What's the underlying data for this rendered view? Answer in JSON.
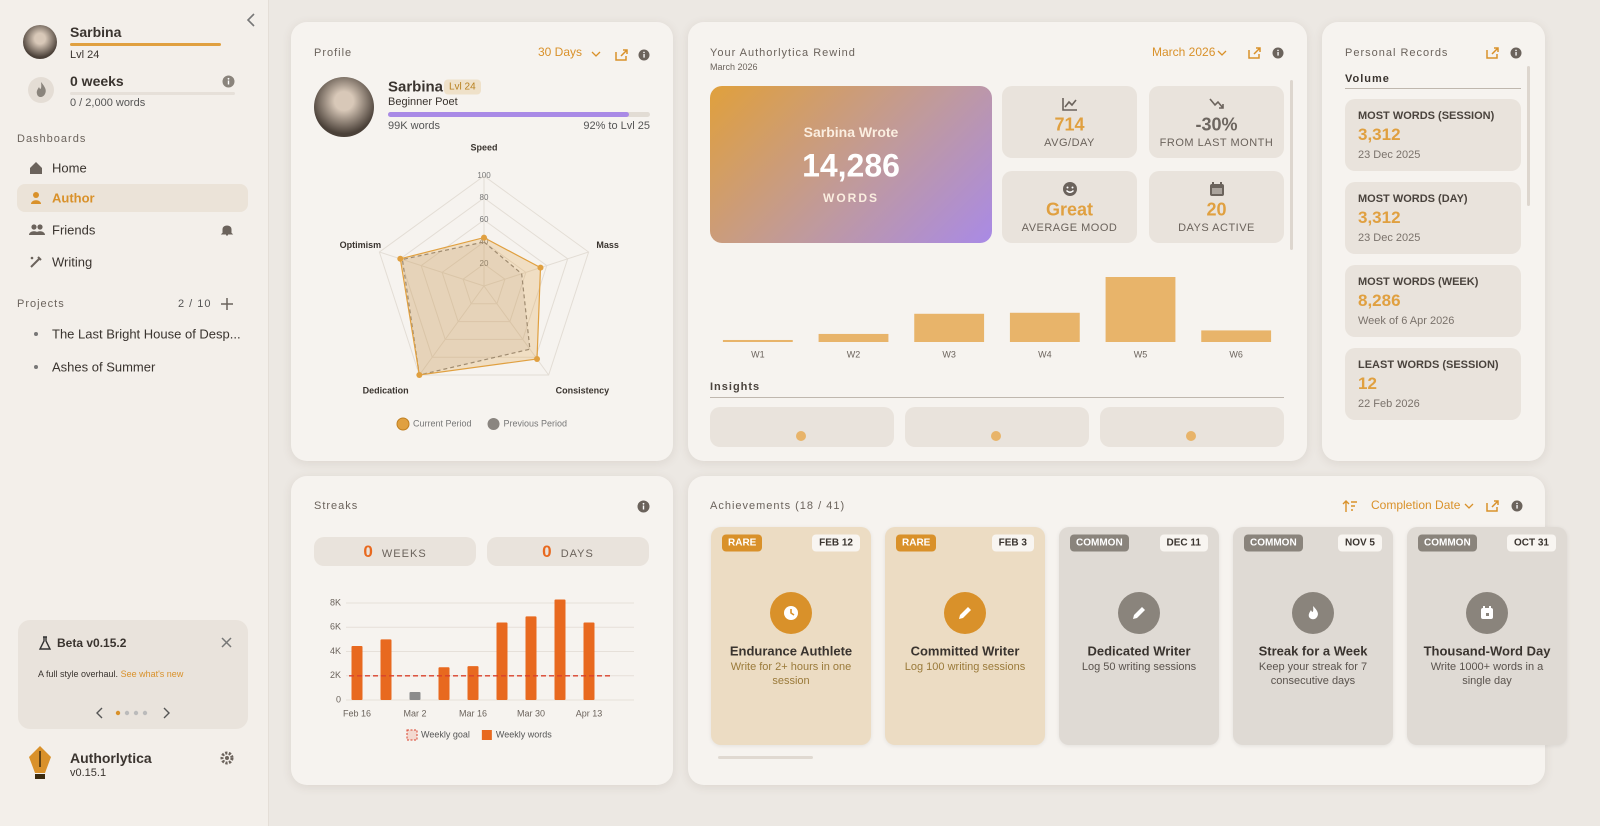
{
  "sidebar": {
    "user": {
      "name": "Sarbina",
      "level": "Lvl 24"
    },
    "streak": {
      "title": "0 weeks",
      "progress": "0 / 2,000 words"
    },
    "dashboards_label": "Dashboards",
    "nav": [
      "Home",
      "Author",
      "Friends",
      "Writing"
    ],
    "projects": {
      "label": "Projects",
      "count": "2 / 10",
      "items": [
        "The Last Bright House of Desp...",
        "Ashes of Summer"
      ]
    },
    "beta": {
      "title": "Beta v0.15.2",
      "text": "A full style overhaul.",
      "link": "See what's new"
    },
    "app": {
      "name": "Authorlytica",
      "version": "v0.15.1"
    }
  },
  "profile": {
    "title": "Profile",
    "period": "30 Days",
    "name": "Sarbina",
    "level": "Lvl 24",
    "role": "Beginner Poet",
    "words": "99K words",
    "progress": {
      "value": 92,
      "label": "92% to Lvl 25"
    }
  },
  "rewind": {
    "title": "Your Authorlytica Rewind",
    "subtitle": "March 2026",
    "period": "March 2026",
    "hero": {
      "intro": "Sarbina Wrote",
      "value": "14,286",
      "unit": "WORDS"
    },
    "stats": [
      {
        "value": "714",
        "label": "AVG/DAY",
        "color": "#e0a040"
      },
      {
        "value": "-30%",
        "label": "FROM LAST MONTH",
        "color": "#6d6660"
      },
      {
        "value": "Great",
        "label": "AVERAGE MOOD",
        "color": "#e0a040"
      },
      {
        "value": "20",
        "label": "DAYS ACTIVE",
        "color": "#e0a040"
      }
    ],
    "insights_label": "Insights"
  },
  "records": {
    "title": "Personal Records",
    "section": "Volume",
    "items": [
      {
        "label": "MOST WORDS (SESSION)",
        "value": "3,312",
        "date": "23 Dec 2025"
      },
      {
        "label": "MOST WORDS (DAY)",
        "value": "3,312",
        "date": "23 Dec 2025"
      },
      {
        "label": "MOST WORDS (WEEK)",
        "value": "8,286",
        "date": "Week of 6 Apr 2026"
      },
      {
        "label": "LEAST WORDS (SESSION)",
        "value": "12",
        "date": "22 Feb 2026"
      }
    ]
  },
  "streaks": {
    "title": "Streaks",
    "weeks": {
      "value": "0",
      "label": "WEEKS"
    },
    "days": {
      "value": "0",
      "label": "DAYS"
    }
  },
  "achievements": {
    "title": "Achievements (18 / 41)",
    "sort": "Completion Date",
    "items": [
      {
        "rarity": "RARE",
        "date": "FEB 12",
        "title": "Endurance Authlete",
        "description": "Write for 2+ hours in one session",
        "color": "#ecdcc3",
        "accent": "#d9912a"
      },
      {
        "rarity": "RARE",
        "date": "FEB 3",
        "title": "Committed Writer",
        "description": "Log 100 writing sessions",
        "color": "#ecdcc3",
        "accent": "#d9912a"
      },
      {
        "rarity": "COMMON",
        "date": "DEC 11",
        "title": "Dedicated Writer",
        "description": "Log 50 writing sessions",
        "color": "#dfdad4",
        "accent": "#8a847c"
      },
      {
        "rarity": "COMMON",
        "date": "NOV 5",
        "title": "Streak for a Week",
        "description": "Keep your streak for 7 consecutive days",
        "color": "#dfdad4",
        "accent": "#8a847c"
      },
      {
        "rarity": "COMMON",
        "date": "OCT 31",
        "title": "Thousand-Word Day",
        "description": "Write 1000+ words in a single day",
        "color": "#dfdad4",
        "accent": "#8a847c"
      }
    ]
  },
  "chart_data": [
    {
      "type": "radar",
      "categories": [
        "Speed",
        "Mass",
        "Consistency",
        "Dedication",
        "Optimism"
      ],
      "rlim": [
        0,
        100
      ],
      "rticks": [
        20,
        40,
        60,
        80,
        100
      ],
      "series": [
        {
          "name": "Current Period",
          "color": "#e0a040",
          "values": [
            44,
            54,
            82,
            100,
            80
          ]
        },
        {
          "name": "Previous Period",
          "color": "#8a8580",
          "values": [
            40,
            36,
            71,
            100,
            78
          ]
        }
      ]
    },
    {
      "type": "bar",
      "categories": [
        "W1",
        "W2",
        "W3",
        "W4",
        "W5",
        "W6"
      ],
      "values": [
        200,
        800,
        2800,
        2900,
        6450,
        1150
      ],
      "color": "#e8b46a"
    },
    {
      "type": "bar",
      "categories": [
        "Feb 16",
        null,
        "Mar 2",
        null,
        "Mar 16",
        null,
        "Mar 30",
        null,
        "Apr 13"
      ],
      "series": [
        {
          "name": "Weekly words",
          "color": "#e8691f",
          "values": [
            4460,
            5000,
            660,
            2700,
            2800,
            6400,
            6900,
            8290,
            6400
          ],
          "point_colors": [
            "#e8691f",
            "#e8691f",
            "#8c8c8c",
            "#e8691f",
            "#e8691f",
            "#e8691f",
            "#e8691f",
            "#e8691f",
            "#e8691f"
          ]
        }
      ],
      "goal": {
        "name": "Weekly goal",
        "value": 2000,
        "color": "#d9412b"
      },
      "ylim": [
        0,
        8500
      ],
      "yticks": [
        0,
        {
          "value": 2000,
          "label": "2K"
        },
        {
          "value": 4000,
          "label": "4K"
        },
        {
          "value": 6000,
          "label": "6K"
        },
        {
          "value": 8000,
          "label": "8K"
        }
      ],
      "grid": true
    }
  ]
}
